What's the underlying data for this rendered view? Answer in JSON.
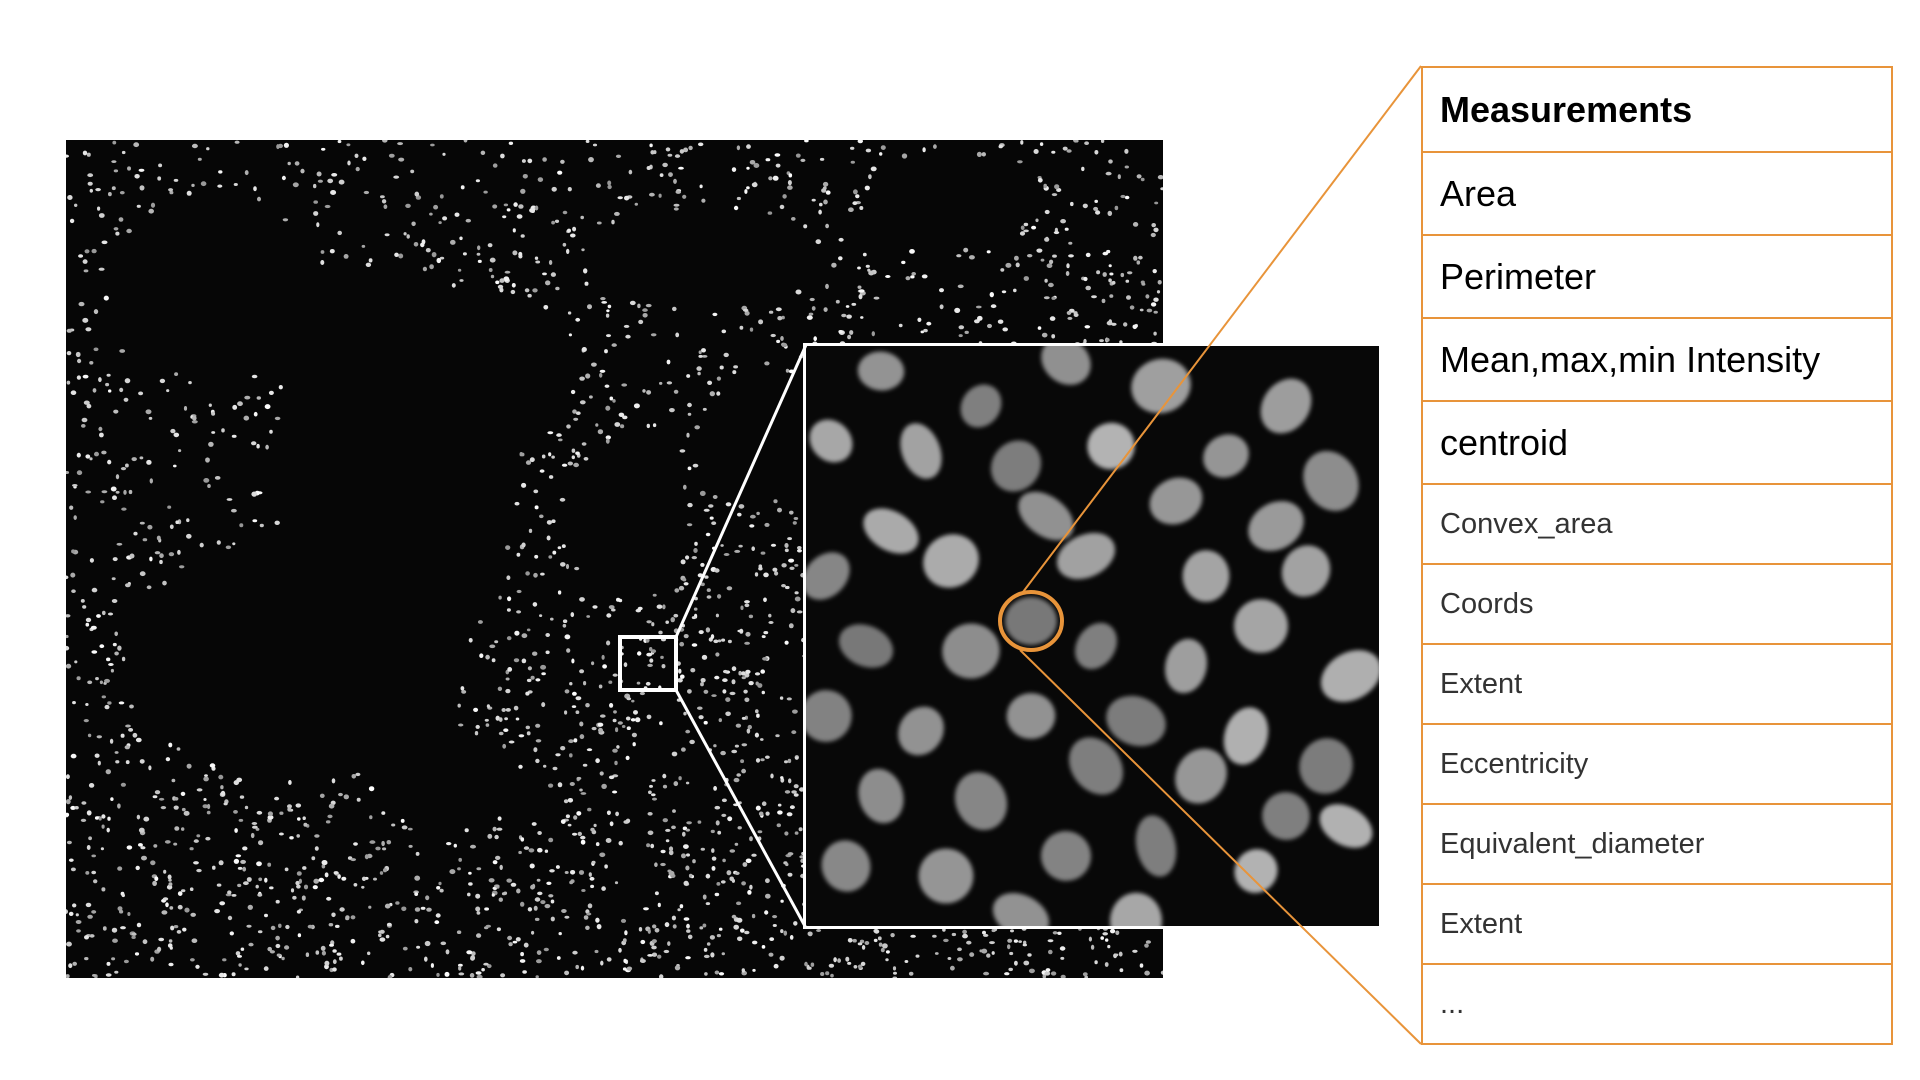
{
  "figure": {
    "micrograph_icon": "fluorescent-nuclei-micrograph",
    "zoom_icon": "zoomed-nuclei-inset",
    "accent_color": "#e8943a",
    "callout_color": "#ffffff"
  },
  "measurements": {
    "title": "Measurements",
    "primary_items": [
      "Area",
      "Perimeter",
      "Mean,max,min Intensity",
      "centroid"
    ],
    "secondary_items": [
      "Convex_area",
      "Coords",
      "Extent",
      "Eccentricity",
      "Equivalent_diameter",
      "Extent",
      "..."
    ]
  }
}
